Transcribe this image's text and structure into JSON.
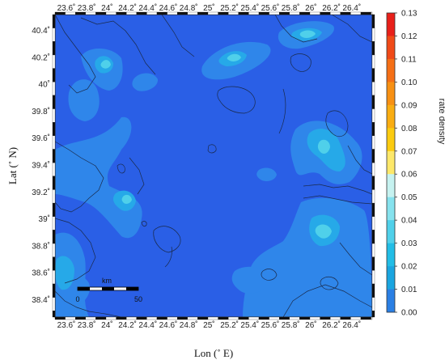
{
  "axes": {
    "lon_ticks": [
      "23.6˚",
      "23.8˚",
      "24˚",
      "24.2˚",
      "24.4˚",
      "24.6˚",
      "24.8˚",
      "25˚",
      "25.2˚",
      "25.4˚",
      "25.6˚",
      "25.8˚",
      "26˚",
      "26.2˚",
      "26.4˚"
    ],
    "lat_ticks": [
      "40.4˚",
      "40.2˚",
      "40˚",
      "39.8˚",
      "39.6˚",
      "39.4˚",
      "39.2˚",
      "39˚",
      "38.8˚",
      "38.6˚",
      "38.4˚"
    ],
    "xlabel": "Lon (˚ E)",
    "ylabel": "Lat (˚ N)"
  },
  "colorbar": {
    "title": "rate density",
    "labels": [
      "0.13",
      "0.12",
      "0.11",
      "0.10",
      "0.09",
      "0.08",
      "0.07",
      "0.06",
      "0.05",
      "0.04",
      "0.03",
      "0.02",
      "0.01",
      "0.00"
    ],
    "colors": [
      "#e8201a",
      "#f04a18",
      "#f56f16",
      "#f79013",
      "#f9ad12",
      "#fbcb10",
      "#fde86a",
      "#c6f2f0",
      "#86e2ee",
      "#4fd0ea",
      "#22bde6",
      "#1aa5e0",
      "#2a7fe4"
    ]
  },
  "scale_bar": {
    "unit": "km",
    "start": "0",
    "end": "50"
  },
  "colors": {
    "background": "#2a5fe6",
    "level1": "#2f86ea",
    "level2": "#26a9e8",
    "level3": "#4fd0ea",
    "coast": "#1a2a4a"
  }
}
